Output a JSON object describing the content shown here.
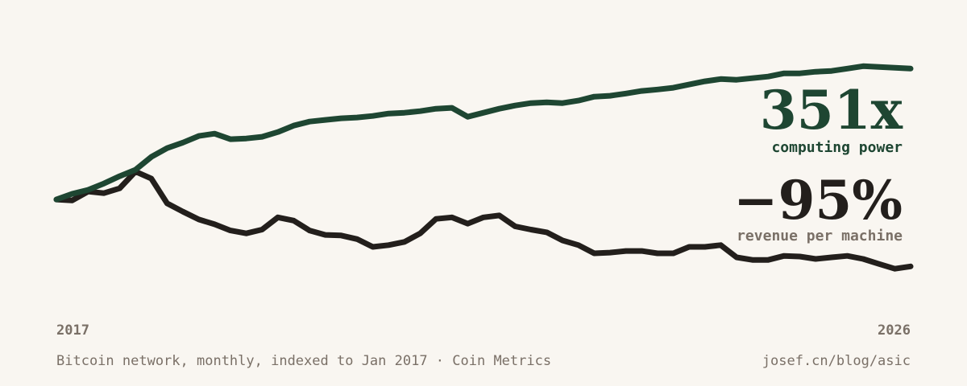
{
  "chart_data": {
    "type": "line",
    "log_scale": true,
    "categories": [
      "2017",
      null,
      null,
      null,
      null,
      null,
      null,
      null,
      null,
      null,
      null,
      null,
      null,
      null,
      null,
      null,
      null,
      null,
      null,
      null,
      null,
      null,
      null,
      null,
      null,
      null,
      null,
      null,
      null,
      null,
      null,
      null,
      null,
      null,
      null,
      null,
      null,
      null,
      null,
      null,
      null,
      null,
      null,
      null,
      null,
      null,
      null,
      null,
      null,
      null,
      null,
      null,
      null,
      null,
      "2026"
    ],
    "ylim": [
      0.01,
      2000
    ],
    "series": [
      {
        "name": "computing power",
        "end_label": "351x",
        "color": "#1e4632",
        "values": [
          1,
          1.29,
          1.54,
          2.05,
          2.84,
          3.79,
          6.73,
          10,
          12.8,
          17.2,
          19.1,
          14.9,
          15.4,
          16.6,
          20.5,
          27.4,
          32.7,
          35.3,
          37.9,
          39.4,
          42.2,
          47,
          48.7,
          52.3,
          58.3,
          60.6,
          40.7,
          48.7,
          58.3,
          67.4,
          75,
          77.8,
          75,
          83.9,
          100,
          104,
          115,
          129,
          138,
          149,
          172,
          199,
          220,
          213,
          229,
          246,
          284,
          284,
          305,
          316,
          351,
          391,
          377,
          364,
          351
        ]
      },
      {
        "name": "revenue per machine",
        "end_label": "−95%",
        "color": "#231f1c",
        "label_color": "#7a7067",
        "values": [
          1,
          0.96,
          1.43,
          1.33,
          1.65,
          3.5,
          2.55,
          0.84,
          0.58,
          0.41,
          0.33,
          0.25,
          0.22,
          0.26,
          0.45,
          0.39,
          0.25,
          0.205,
          0.2,
          0.17,
          0.12,
          0.13,
          0.15,
          0.22,
          0.42,
          0.45,
          0.34,
          0.45,
          0.49,
          0.3,
          0.26,
          0.23,
          0.16,
          0.13,
          0.09,
          0.093,
          0.1,
          0.1,
          0.09,
          0.09,
          0.12,
          0.12,
          0.13,
          0.075,
          0.067,
          0.067,
          0.08,
          0.078,
          0.07,
          0.075,
          0.08,
          0.07,
          0.056,
          0.045,
          0.05
        ]
      }
    ],
    "source": "Bitcoin network, monthly, indexed to Jan 2017 · Coin Metrics",
    "url": "josef.cn/blog/asic"
  }
}
